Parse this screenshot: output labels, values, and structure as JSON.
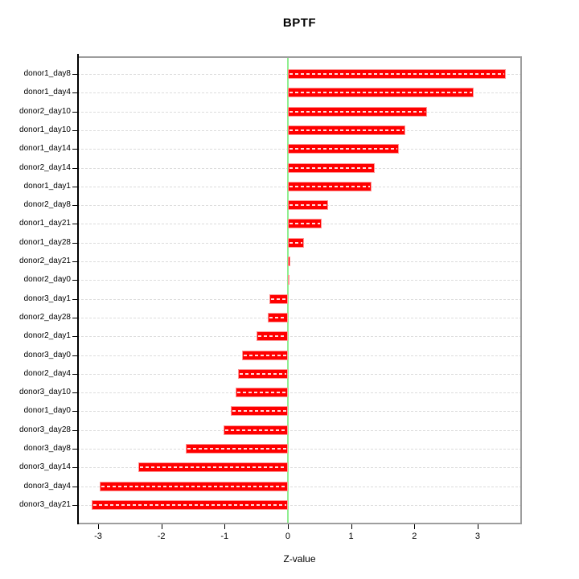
{
  "title": "BPTF",
  "xlabel": "Z-value",
  "chart_data": {
    "type": "bar",
    "orientation": "horizontal",
    "title": "BPTF",
    "xlabel": "Z-value",
    "ylabel": "",
    "categories": [
      "donor1_day8",
      "donor1_day4",
      "donor2_day10",
      "donor1_day10",
      "donor1_day14",
      "donor2_day14",
      "donor1_day1",
      "donor2_day8",
      "donor1_day21",
      "donor1_day28",
      "donor2_day21",
      "donor2_day0",
      "donor3_day1",
      "donor2_day28",
      "donor2_day1",
      "donor3_day0",
      "donor2_day4",
      "donor3_day10",
      "donor1_day0",
      "donor3_day28",
      "donor3_day8",
      "donor3_day14",
      "donor3_day4",
      "donor3_day21"
    ],
    "values": [
      3.45,
      2.94,
      2.2,
      1.86,
      1.76,
      1.38,
      1.32,
      0.64,
      0.53,
      0.26,
      0.04,
      0.01,
      -0.29,
      -0.32,
      -0.49,
      -0.73,
      -0.79,
      -0.82,
      -0.9,
      -1.02,
      -1.62,
      -2.37,
      -2.98,
      -3.1
    ],
    "xticks": [
      -3,
      -2,
      -1,
      0,
      1,
      2,
      3
    ],
    "xlim": [
      -3.33,
      3.7
    ],
    "grid": true,
    "grid_style": "dashed",
    "legend": false,
    "zero_line_at": 0,
    "colors": {
      "bar_fill": "#ff0000",
      "bar_edge": "#ff9595",
      "bar_center_dash": "#ffdede",
      "zero_line": "#90ee90",
      "gridline": "#dcdcdc",
      "box_border": "#9e9e9e",
      "axis": "#000000",
      "text": "#000000",
      "background": "#ffffff"
    }
  }
}
